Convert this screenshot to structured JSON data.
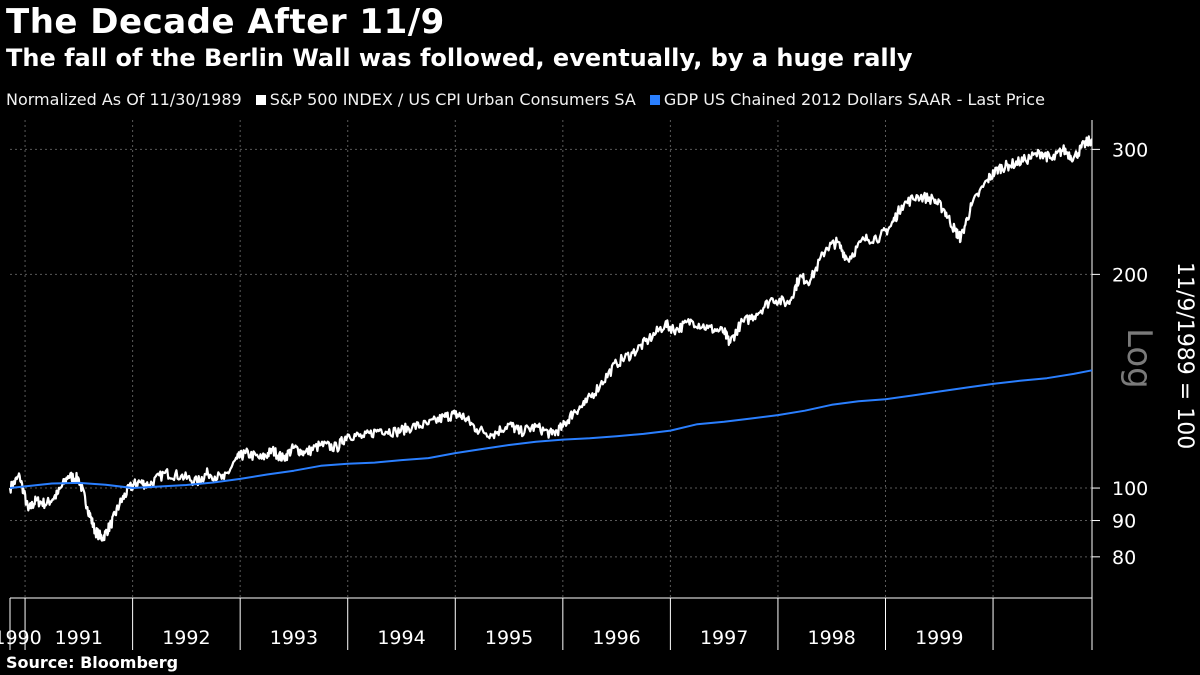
{
  "title": "The Decade After 11/9",
  "subtitle": "The fall of the Berlin Wall was followed, eventually, by a huge rally",
  "source": "Source: Bloomberg",
  "legend": {
    "note": "Normalized As Of 11/30/1989",
    "items": [
      {
        "label": "S&P 500 INDEX / US CPI Urban Consumers SA",
        "color": "#ffffff"
      },
      {
        "label": "GDP US Chained 2012 Dollars SAAR - Last Price",
        "color": "#2a7fff"
      }
    ]
  },
  "chart_data": {
    "type": "line",
    "y_scale": "log",
    "ylabel": "11/9/1989 = 100",
    "y_scale_label": "Log",
    "y_ticks": [
      80,
      90,
      100,
      200,
      300
    ],
    "ylim": [
      70,
      330
    ],
    "x_tick_labels": [
      "1990",
      "1991",
      "1992",
      "1993",
      "1994",
      "1995",
      "1996",
      "1997",
      "1998",
      "1999"
    ],
    "xlim": [
      1989.86,
      1999.92
    ],
    "grid": true,
    "series": [
      {
        "name": "S&P 500 INDEX / US CPI Urban Consumers SA",
        "color": "#ffffff",
        "x": [
          1989.86,
          1989.95,
          1990.03,
          1990.1,
          1990.2,
          1990.3,
          1990.4,
          1990.5,
          1990.58,
          1990.65,
          1990.72,
          1990.8,
          1990.88,
          1990.97,
          1991.05,
          1991.15,
          1991.3,
          1991.45,
          1991.6,
          1991.7,
          1991.85,
          1991.97,
          1992.05,
          1992.2,
          1992.3,
          1992.4,
          1992.5,
          1992.6,
          1992.75,
          1992.9,
          1993.0,
          1993.15,
          1993.3,
          1993.45,
          1993.6,
          1993.75,
          1993.9,
          1994.0,
          1994.08,
          1994.2,
          1994.35,
          1994.5,
          1994.6,
          1994.75,
          1994.9,
          1995.0,
          1995.1,
          1995.2,
          1995.35,
          1995.5,
          1995.65,
          1995.8,
          1995.95,
          1996.05,
          1996.2,
          1996.35,
          1996.5,
          1996.55,
          1996.65,
          1996.8,
          1996.95,
          1997.1,
          1997.2,
          1997.3,
          1997.45,
          1997.55,
          1997.65,
          1997.8,
          1997.95,
          1998.05,
          1998.15,
          1998.3,
          1998.45,
          1998.55,
          1998.65,
          1998.7,
          1998.8,
          1998.95,
          1999.05,
          1999.15,
          1999.3,
          1999.45,
          1999.55,
          1999.65,
          1999.75,
          1999.85,
          1999.92
        ],
        "values": [
          100,
          104,
          93,
          96,
          95,
          98,
          104,
          103,
          94,
          87,
          85,
          89,
          95,
          100,
          102,
          101,
          105,
          104,
          102,
          105,
          103,
          110,
          112,
          110,
          113,
          110,
          114,
          112,
          115,
          114,
          119,
          118,
          121,
          120,
          122,
          123,
          126,
          127,
          126,
          121,
          119,
          123,
          120,
          122,
          119,
          122,
          128,
          131,
          140,
          150,
          155,
          162,
          170,
          167,
          172,
          168,
          166,
          160,
          170,
          176,
          185,
          182,
          198,
          196,
          218,
          222,
          210,
          224,
          226,
          234,
          250,
          258,
          255,
          246,
          230,
          225,
          250,
          272,
          282,
          285,
          290,
          297,
          290,
          300,
          292,
          305,
          310
        ]
      },
      {
        "name": "GDP US Chained 2012 Dollars SAAR - Last Price",
        "color": "#2a7fff",
        "x": [
          1989.86,
          1990.25,
          1990.5,
          1990.75,
          1991.0,
          1991.25,
          1991.5,
          1991.75,
          1992.0,
          1992.25,
          1992.5,
          1992.75,
          1993.0,
          1993.25,
          1993.5,
          1993.75,
          1994.0,
          1994.25,
          1994.5,
          1994.75,
          1995.0,
          1995.25,
          1995.5,
          1995.75,
          1996.0,
          1996.25,
          1996.5,
          1996.75,
          1997.0,
          1997.25,
          1997.5,
          1997.75,
          1998.0,
          1998.25,
          1998.5,
          1998.75,
          1999.0,
          1999.25,
          1999.5,
          1999.75,
          1999.92
        ],
        "values": [
          100.0,
          101.5,
          101.7,
          101.1,
          100.0,
          100.5,
          101.0,
          101.8,
          103.0,
          104.5,
          105.8,
          107.5,
          108.2,
          108.6,
          109.5,
          110.2,
          112.0,
          113.5,
          115.0,
          116.2,
          117.0,
          117.5,
          118.3,
          119.2,
          120.5,
          123.0,
          124.0,
          125.3,
          126.7,
          128.5,
          131.0,
          132.5,
          133.4,
          135.0,
          136.8,
          138.5,
          140.2,
          141.6,
          142.8,
          144.8,
          146.5
        ]
      }
    ]
  }
}
